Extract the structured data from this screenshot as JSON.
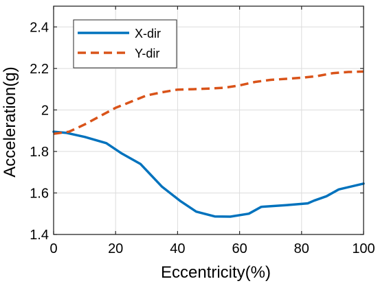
{
  "chart_data": {
    "type": "line",
    "xlabel": "Eccentricity(%)",
    "ylabel": "Acceleration(g)",
    "xlim": [
      0,
      100
    ],
    "ylim": [
      1.4,
      2.5
    ],
    "xticks": [
      0,
      20,
      40,
      60,
      80,
      100
    ],
    "yticks": [
      1.4,
      1.6,
      1.8,
      2.0,
      2.2,
      2.4
    ],
    "xtick_labels": [
      "0",
      "20",
      "40",
      "60",
      "80",
      "100"
    ],
    "ytick_labels": [
      "1.4",
      "1.6",
      "1.8",
      "2",
      "2.2",
      "2.4"
    ],
    "grid": true,
    "legend_position": "top-left",
    "series": [
      {
        "name": "X-dir",
        "color": "#0072BD",
        "style": "solid",
        "x": [
          0,
          4,
          10,
          17,
          22,
          28,
          35,
          41,
          46,
          52,
          57,
          63,
          67,
          75,
          82,
          84,
          88,
          92,
          100
        ],
        "y": [
          1.895,
          1.89,
          1.87,
          1.84,
          1.79,
          1.74,
          1.63,
          1.56,
          1.51,
          1.487,
          1.486,
          1.5,
          1.533,
          1.541,
          1.55,
          1.563,
          1.584,
          1.617,
          1.645
        ]
      },
      {
        "name": "Y-dir",
        "color": "#D95319",
        "style": "dashed",
        "x": [
          0,
          5,
          10,
          15,
          20,
          25,
          30,
          35,
          40,
          45,
          50,
          55,
          60,
          65,
          70,
          75,
          80,
          85,
          90,
          95,
          100
        ],
        "y": [
          1.885,
          1.895,
          1.93,
          1.97,
          2.01,
          2.04,
          2.07,
          2.085,
          2.098,
          2.1,
          2.103,
          2.107,
          2.118,
          2.135,
          2.145,
          2.15,
          2.155,
          2.163,
          2.177,
          2.183,
          2.185
        ]
      }
    ]
  }
}
